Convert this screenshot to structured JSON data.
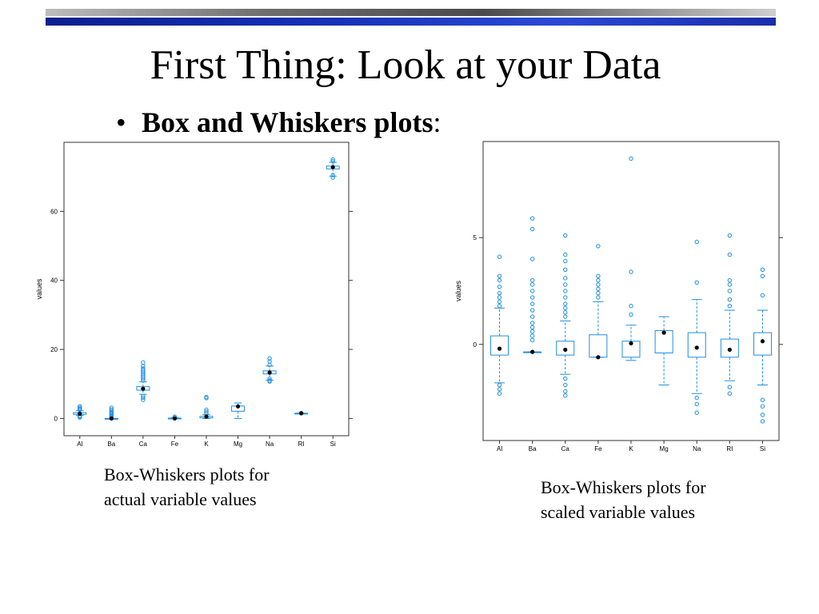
{
  "slide": {
    "title": "First Thing: Look at your Data",
    "bullet_bold": "Box and Whiskers plots",
    "bullet_rest": ":"
  },
  "captions": {
    "left_line1": "Box-Whiskers plots for",
    "left_line2": "actual variable values",
    "right_line1": "Box-Whiskers plots for",
    "right_line2": "scaled variable values"
  },
  "colors": {
    "box": "#1f8fe0",
    "median": "#000000"
  },
  "chart_data": [
    {
      "type": "box",
      "ylabel": "values",
      "ylim": [
        -5,
        80
      ],
      "yticks": [
        0,
        20,
        40,
        60
      ],
      "categories": [
        "Al",
        "Ba",
        "Ca",
        "Fe",
        "K",
        "Mg",
        "Na",
        "RI",
        "Si"
      ],
      "boxes": [
        {
          "lo": 0.9,
          "q1": 1.2,
          "med": 1.4,
          "q3": 1.7,
          "hi": 2.3,
          "out": [
            0.3,
            0.5,
            0.7,
            2.5,
            2.8,
            3.1,
            3.5
          ]
        },
        {
          "lo": 0,
          "q1": 0,
          "med": 0,
          "q3": 0,
          "hi": 0,
          "out": [
            0.3,
            0.6,
            0.9,
            1.2,
            1.5,
            1.8,
            2.2,
            2.6,
            3.1
          ]
        },
        {
          "lo": 7,
          "q1": 8.2,
          "med": 8.6,
          "q3": 9.2,
          "hi": 10.6,
          "out": [
            5.4,
            6,
            6.5,
            11,
            11.5,
            12,
            12.5,
            13,
            13.5,
            14,
            14.5,
            15.2,
            16.2
          ]
        },
        {
          "lo": 0,
          "q1": 0,
          "med": 0,
          "q3": 0.1,
          "hi": 0.25,
          "out": [
            0.35,
            0.5
          ]
        },
        {
          "lo": 0,
          "q1": 0.15,
          "med": 0.56,
          "q3": 0.6,
          "hi": 1.1,
          "out": [
            1.5,
            2,
            2.5,
            5.9,
            6.2
          ]
        },
        {
          "lo": 0,
          "q1": 2.1,
          "med": 3.5,
          "q3": 3.6,
          "hi": 4.5,
          "out": []
        },
        {
          "lo": 11.1,
          "q1": 12.9,
          "med": 13.3,
          "q3": 13.8,
          "hi": 15.2,
          "out": [
            10.7,
            11,
            11.5,
            15.5,
            16.5,
            17.4
          ]
        },
        {
          "lo": 1.51,
          "q1": 1.516,
          "med": 1.518,
          "q3": 1.519,
          "hi": 1.523,
          "out": [
            1.53,
            1.534
          ]
        },
        {
          "lo": 70.2,
          "q1": 72.3,
          "med": 72.8,
          "q3": 73.1,
          "hi": 74.2,
          "out": [
            69.8,
            70.5,
            74.5,
            75
          ]
        }
      ]
    },
    {
      "type": "box",
      "ylabel": "values",
      "ylim": [
        -4.5,
        9.5
      ],
      "yticks": [
        0,
        5
      ],
      "categories": [
        "Al",
        "Ba",
        "Ca",
        "Fe",
        "K",
        "Mg",
        "Na",
        "RI",
        "Si"
      ],
      "boxes": [
        {
          "lo": -1.8,
          "q1": -0.5,
          "med": -0.2,
          "q3": 0.4,
          "hi": 1.7,
          "out": [
            -2.3,
            -2.1,
            -1.9,
            1.8,
            2,
            2.2,
            2.4,
            2.7,
            3,
            3.2,
            4.1
          ]
        },
        {
          "lo": -0.35,
          "q1": -0.35,
          "med": -0.35,
          "q3": -0.35,
          "hi": -0.35,
          "out": [
            0.2,
            0.4,
            0.6,
            0.8,
            1,
            1.3,
            1.6,
            1.9,
            2.2,
            2.5,
            2.8,
            3,
            4,
            5.4,
            5.9
          ]
        },
        {
          "lo": -1.4,
          "q1": -0.5,
          "med": -0.25,
          "q3": 0.15,
          "hi": 1.1,
          "out": [
            -2.4,
            -2.2,
            -1.9,
            -1.6,
            1.3,
            1.5,
            1.7,
            1.9,
            2.2,
            2.5,
            2.8,
            3.1,
            3.5,
            3.9,
            4.2,
            5.1
          ]
        },
        {
          "lo": -0.6,
          "q1": -0.6,
          "med": -0.6,
          "q3": 0.45,
          "hi": 2,
          "out": [
            2.2,
            2.4,
            2.6,
            2.8,
            3,
            3.2,
            4.6
          ]
        },
        {
          "lo": -0.75,
          "q1": -0.6,
          "med": 0.05,
          "q3": 0.15,
          "hi": 0.9,
          "out": [
            1.4,
            1.8,
            3.4,
            8.7
          ]
        },
        {
          "lo": -1.9,
          "q1": -0.4,
          "med": 0.55,
          "q3": 0.65,
          "hi": 1.3,
          "out": []
        },
        {
          "lo": -2.3,
          "q1": -0.6,
          "med": -0.15,
          "q3": 0.55,
          "hi": 2.1,
          "out": [
            -3.2,
            -2.8,
            -2.5,
            2.9,
            4.8
          ]
        },
        {
          "lo": -1.7,
          "q1": -0.6,
          "med": -0.25,
          "q3": 0.25,
          "hi": 1.6,
          "out": [
            -2.3,
            -2,
            1.8,
            2.1,
            2.5,
            2.8,
            3,
            4.2,
            5.1
          ]
        },
        {
          "lo": -1.9,
          "q1": -0.5,
          "med": 0.15,
          "q3": 0.55,
          "hi": 1.6,
          "out": [
            -3.6,
            -3.3,
            -2.9,
            -2.6,
            2.3,
            3.2,
            3.5
          ]
        }
      ]
    }
  ]
}
